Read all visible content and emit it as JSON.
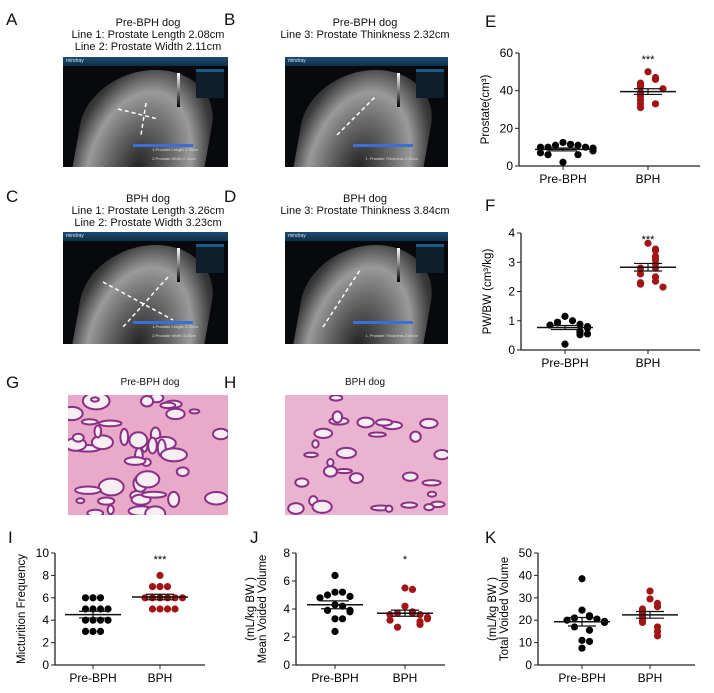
{
  "panels": {
    "A": {
      "label": "A",
      "title": "Pre-BPH dog",
      "line1": "Line 1: Prostate Length 2.08cm",
      "line2": "Line 2: Prostate Width   2.11cm",
      "brand": "mindray",
      "meas": [
        "1.Prostate Length   2.08cm",
        "2.Prostate Width    2.11cm"
      ]
    },
    "B": {
      "label": "B",
      "title": "Pre-BPH dog",
      "line1": "Line 3: Prostate Thinkness 2.32cm",
      "brand": "mindray",
      "meas": [
        "1. Prostate Thickness  2.32cm"
      ]
    },
    "C": {
      "label": "C",
      "title": "BPH dog",
      "line1": "Line 1: Prostate Length 3.26cm",
      "line2": "Line 2: Prostate Width   3.23cm",
      "brand": "mindray",
      "meas": [
        "1.Prostate Length   3.26cm",
        "2.Prostate Width    3.23cm"
      ]
    },
    "D": {
      "label": "D",
      "title": "BPH dog",
      "line1": "Line 3: Prostate Thinkness 3.84cm",
      "brand": "mindray",
      "meas": [
        "1. Prostate Thickness  3.84cm"
      ]
    },
    "E": {
      "label": "E"
    },
    "F": {
      "label": "F"
    },
    "G": {
      "label": "G",
      "title": "Pre-BPH dog"
    },
    "H": {
      "label": "H",
      "title": "BPH dog"
    },
    "I": {
      "label": "I"
    },
    "J": {
      "label": "J"
    },
    "K": {
      "label": "K"
    }
  },
  "colors": {
    "pre": "#000000",
    "bph": "#a31515"
  },
  "chart_data": [
    {
      "panel": "E",
      "type": "scatter",
      "ylabel": [
        "Prostate(cm³)"
      ],
      "ylim": [
        0,
        60
      ],
      "yticks": [
        0,
        20,
        40,
        60
      ],
      "categories": [
        "Pre-BPH",
        "BPH"
      ],
      "significance": "***",
      "series": [
        {
          "values": [
            12.5,
            11.5,
            11,
            11,
            10,
            10,
            10,
            9.5,
            9,
            8,
            7,
            6,
            6,
            2
          ],
          "mean": 8.8,
          "sem": 0.8
        },
        {
          "values": [
            50,
            47,
            46,
            44,
            43,
            42,
            41,
            39,
            38,
            37,
            35,
            33,
            33,
            31
          ],
          "mean": 39.5,
          "sem": 1.5
        }
      ]
    },
    {
      "panel": "F",
      "type": "scatter",
      "ylabel": [
        "PW/BW (cm³/kg)"
      ],
      "ylim": [
        0,
        4
      ],
      "yticks": [
        0,
        1,
        2,
        3,
        4
      ],
      "categories": [
        "Pre-BPH",
        "BPH"
      ],
      "significance": "***",
      "series": [
        {
          "values": [
            1.15,
            1.0,
            0.95,
            0.93,
            0.88,
            0.85,
            0.8,
            0.75,
            0.65,
            0.6,
            0.55,
            0.52,
            0.55,
            0.2
          ],
          "mean": 0.77,
          "sem": 0.07
        },
        {
          "values": [
            3.65,
            3.45,
            3.4,
            3.2,
            3.1,
            2.95,
            2.8,
            2.8,
            2.6,
            2.5,
            2.35,
            2.3,
            2.25,
            2.15
          ],
          "mean": 2.83,
          "sem": 0.13
        }
      ]
    },
    {
      "panel": "I",
      "type": "scatter",
      "ylabel": [
        "Micturition Frequency"
      ],
      "ylim": [
        0,
        10
      ],
      "yticks": [
        0,
        2,
        4,
        6,
        8,
        10
      ],
      "categories": [
        "Pre-BPH",
        "BPH"
      ],
      "significance": "***",
      "series": [
        {
          "values": [
            6,
            6,
            6,
            5,
            5,
            5,
            5,
            4,
            4,
            4,
            4,
            3,
            3,
            3
          ],
          "mean": 4.5,
          "sem": 0.3
        },
        {
          "values": [
            8,
            7,
            7,
            7,
            6,
            6,
            6,
            6,
            6,
            6,
            5,
            5,
            5,
            5
          ],
          "mean": 6.07,
          "sem": 0.25
        }
      ]
    },
    {
      "panel": "J",
      "type": "scatter",
      "ylabel": [
        "Mean Voided Volume",
        "(mL/kg BW )"
      ],
      "ylim": [
        0,
        8
      ],
      "yticks": [
        0,
        2,
        4,
        6,
        8
      ],
      "categories": [
        "Pre-BPH",
        "BPH"
      ],
      "significance": "*",
      "series": [
        {
          "values": [
            6.4,
            5.2,
            5.2,
            5.0,
            4.9,
            4.8,
            4.3,
            4.2,
            3.9,
            3.9,
            3.8,
            3.3,
            3.3,
            2.4
          ],
          "mean": 4.3,
          "sem": 0.28
        },
        {
          "values": [
            5.5,
            5.4,
            4.2,
            3.8,
            3.7,
            3.7,
            3.6,
            3.6,
            3.4,
            3.3,
            3.2,
            3.1,
            2.9,
            2.7
          ],
          "mean": 3.7,
          "sem": 0.22
        }
      ]
    },
    {
      "panel": "K",
      "type": "scatter",
      "ylabel": [
        "Total Voided Volume",
        "(mL/kg BW )"
      ],
      "ylim": [
        0,
        50
      ],
      "yticks": [
        0,
        10,
        20,
        30,
        40,
        50
      ],
      "categories": [
        "Pre-BPH",
        "BPH"
      ],
      "significance": "",
      "series": [
        {
          "values": [
            38.5,
            24.5,
            22,
            21.5,
            21,
            20.5,
            20,
            19.5,
            19,
            17,
            15.5,
            11,
            10.5,
            7.5
          ],
          "mean": 19.3,
          "sem": 1.9
        },
        {
          "values": [
            33,
            29.5,
            27.5,
            26,
            25,
            24,
            23,
            22,
            21,
            20,
            19,
            17,
            15,
            13
          ],
          "mean": 22.4,
          "sem": 1.5
        }
      ]
    }
  ]
}
